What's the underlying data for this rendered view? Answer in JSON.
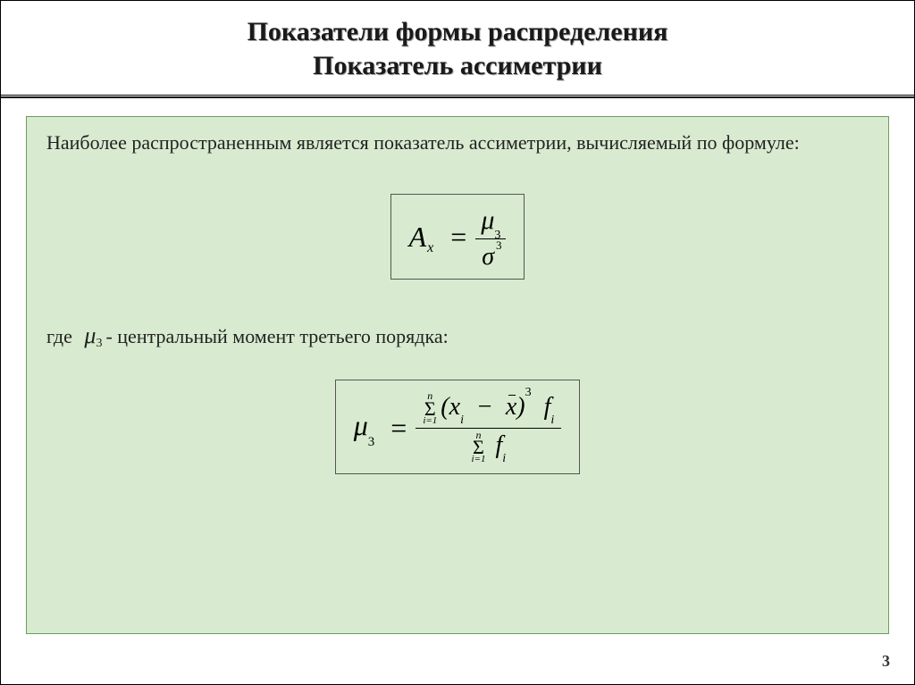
{
  "slide": {
    "background_color": "#ffffff",
    "title_line1": "Показатели формы распределения",
    "title_line2": "Показатель ассиметрии",
    "title_fontsize": 30,
    "title_color": "#1a1a1a",
    "title_shadow": "#aaaaaa",
    "divider_colors": [
      "#000000",
      "#000000"
    ],
    "page_number": "3"
  },
  "content": {
    "box_bg": "#d8ebd0",
    "box_border": "#6e9c5a",
    "intro_text": "Наиболее распространенным является показатель ассиметрии, вычисляемый по формуле:",
    "intro_fontsize": 22,
    "where_prefix": "где",
    "where_symbol_mu": "μ",
    "where_symbol_sub": "3",
    "where_text": "- центральный момент третьего порядка:",
    "where_fontsize": 22
  },
  "formula1": {
    "frame_border": "#555555",
    "lhs_var": "A",
    "lhs_sub": "x",
    "eq": "=",
    "num_sym": "μ",
    "num_sub": "3",
    "den_sym": "σ",
    "den_sup": "3",
    "font_size": 32
  },
  "formula2": {
    "frame_border": "#555555",
    "lhs_sym": "μ",
    "lhs_sub": "3",
    "eq": "=",
    "sum_top": "n",
    "sum_sym": "Σ",
    "sum_bot": "i=1",
    "paren_open": "(",
    "x": "x",
    "x_sub": "i",
    "minus": "−",
    "xbar": "x",
    "paren_close": ")",
    "power": "3",
    "f": "f",
    "f_sub": "i",
    "den_sum_top": "n",
    "den_sum_sym": "Σ",
    "den_sum_bot": "i=1",
    "den_f": "f",
    "den_f_sub": "i",
    "font_size": 32
  }
}
